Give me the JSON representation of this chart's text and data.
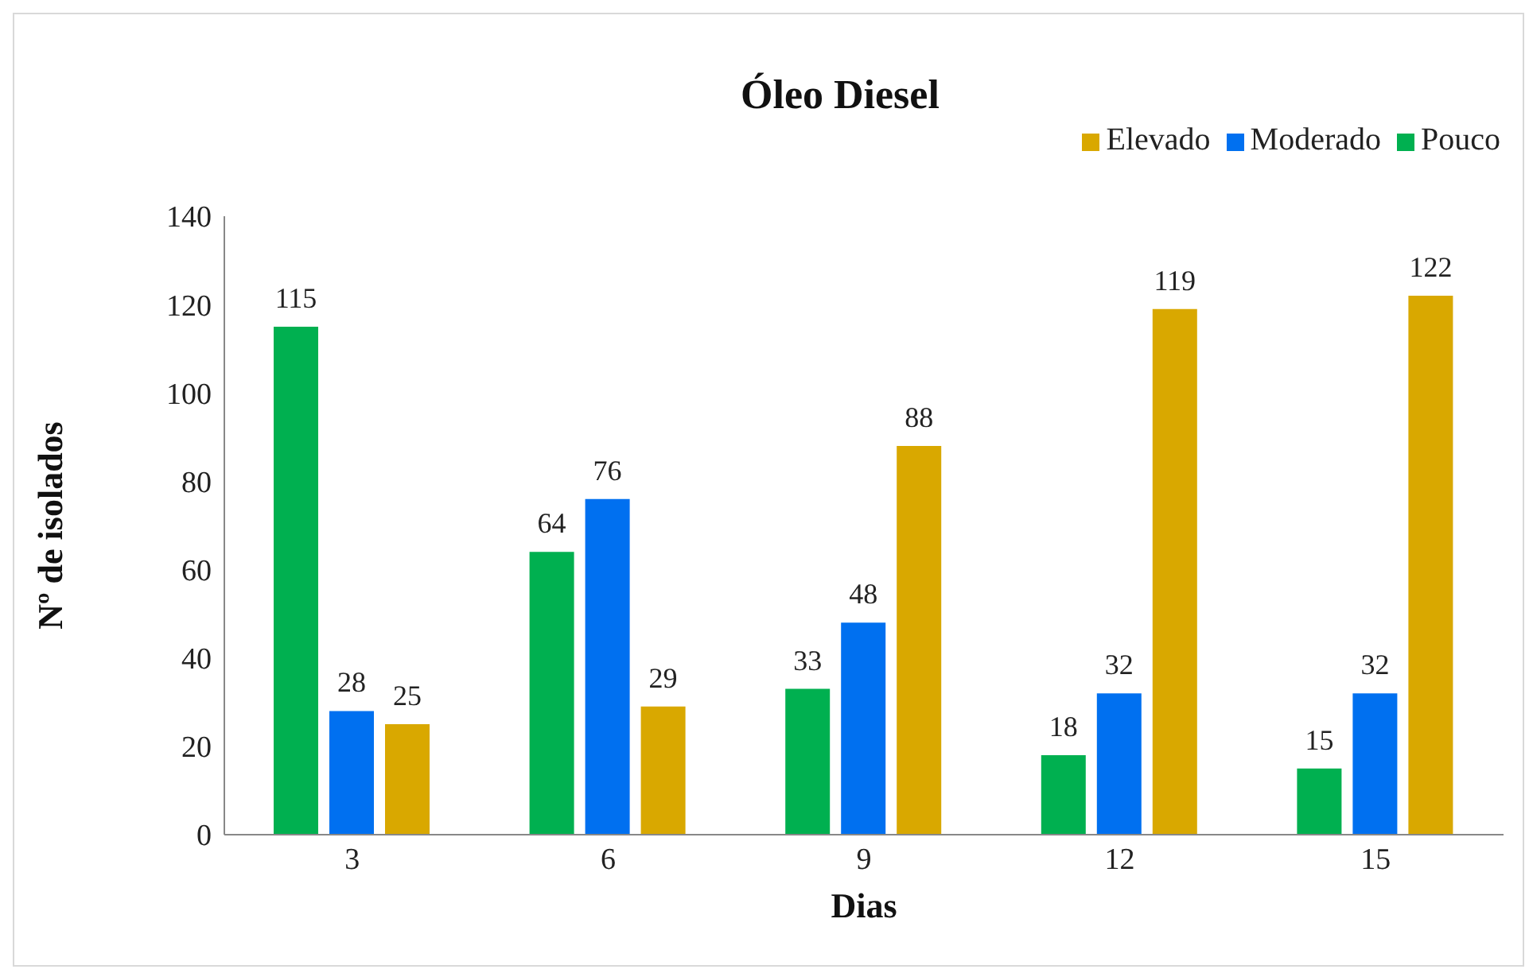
{
  "chart_data": {
    "type": "bar",
    "title": "Óleo Diesel",
    "xlabel": "Dias",
    "ylabel": "Nº de isolados",
    "categories": [
      "3",
      "6",
      "9",
      "12",
      "15"
    ],
    "series": [
      {
        "name": "Pouco",
        "color": "#00b050",
        "values": [
          115,
          64,
          33,
          18,
          15
        ]
      },
      {
        "name": "Moderado",
        "color": "#0070f0",
        "values": [
          28,
          76,
          48,
          32,
          32
        ]
      },
      {
        "name": "Elevado",
        "color": "#d9a800",
        "values": [
          25,
          29,
          88,
          119,
          122
        ]
      }
    ],
    "ylim": [
      0,
      140
    ],
    "yticks": [
      0,
      20,
      40,
      60,
      80,
      100,
      120,
      140
    ],
    "data_labels": true,
    "legend": "top right"
  }
}
